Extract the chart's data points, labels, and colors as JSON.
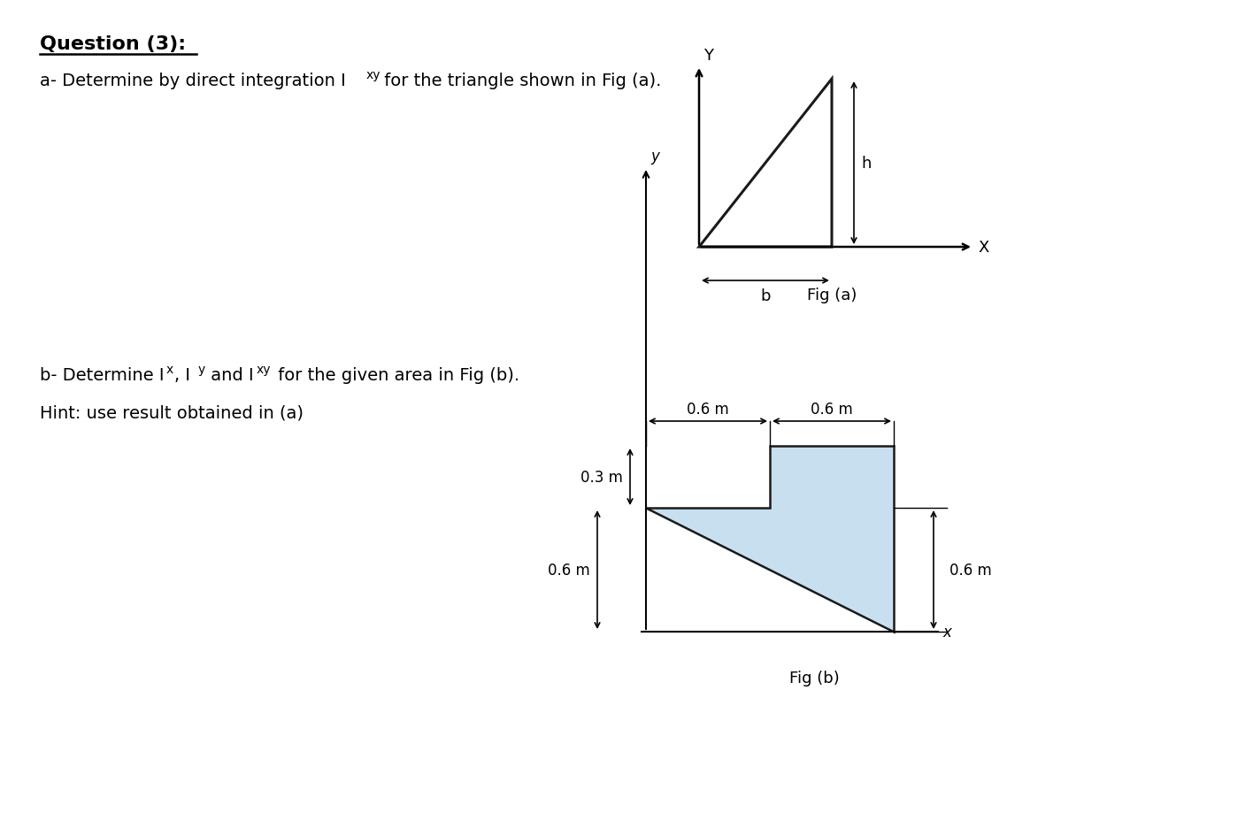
{
  "bg_color": "#ffffff",
  "triangle_color": "#1a1a1a",
  "shape_fill_color": "#c8dff0",
  "shape_edge_color": "#1a1a1a",
  "fig_a_label": "Fig (a)",
  "fig_b_label": "Fig (b)",
  "question_title": "Question (3):",
  "line_a_part1": "a- Determine by direct integration I",
  "line_a_sub": "xy",
  "line_a_part2": " for the triangle shown in Fig (a).",
  "line_b_part1": "b- Determine I",
  "line_b_sub1": "x",
  "line_b_part2": ", I",
  "line_b_sub2": "y",
  "line_b_part3": " and I",
  "line_b_sub3": "xy",
  "line_b_part4": " for the given area in Fig (b).",
  "line_hint": "Hint: use result obtained in (a)",
  "label_h": "h",
  "label_b": "b",
  "label_Y": "Y",
  "label_X": "X",
  "label_x": "x",
  "label_y": "y",
  "dim_06_1": "0.6 m",
  "dim_06_2": "0.6 m",
  "dim_06_3": "0.6 m",
  "dim_06_4": "0.6 m",
  "dim_03": "0.3 m"
}
